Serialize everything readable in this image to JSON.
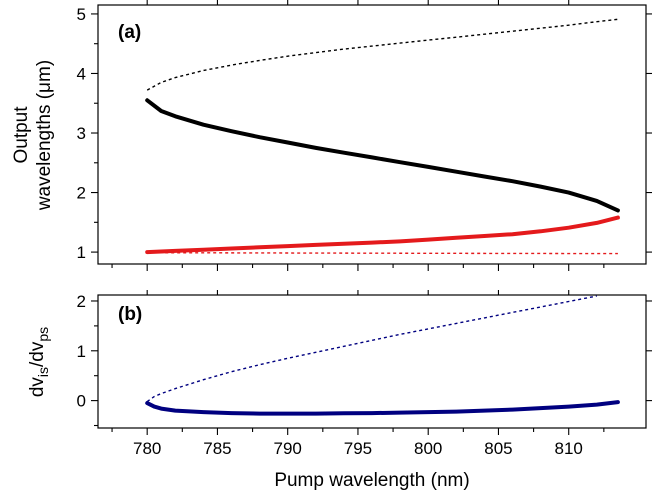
{
  "chart_data": [
    {
      "panel": "(a)",
      "type": "line",
      "xlabel": "Pump wavelength (nm)",
      "ylabel_lines": [
        "Output",
        "wavelengths (μm)"
      ],
      "xlim": [
        776.5,
        815.5
      ],
      "ylim": [
        0.8,
        5.15
      ],
      "xticks": [
        780,
        785,
        790,
        795,
        800,
        805,
        810
      ],
      "yticks": [
        1,
        2,
        3,
        4,
        5
      ],
      "series": [
        {
          "color": "#000000",
          "style": "dashed",
          "x": [
            780,
            781,
            782,
            784,
            786,
            788,
            790,
            792,
            794,
            796,
            798,
            800,
            802,
            804,
            806,
            808,
            810,
            812,
            813.5
          ],
          "y": [
            3.72,
            3.85,
            3.93,
            4.05,
            4.14,
            4.22,
            4.29,
            4.35,
            4.41,
            4.46,
            4.51,
            4.56,
            4.61,
            4.66,
            4.71,
            4.76,
            4.81,
            4.87,
            4.91
          ]
        },
        {
          "color": "#000000",
          "style": "solid",
          "x": [
            780,
            781,
            782,
            784,
            786,
            788,
            790,
            792,
            794,
            796,
            798,
            800,
            802,
            804,
            806,
            808,
            810,
            812,
            813.5
          ],
          "y": [
            3.55,
            3.37,
            3.28,
            3.14,
            3.03,
            2.93,
            2.84,
            2.75,
            2.67,
            2.59,
            2.51,
            2.43,
            2.35,
            2.27,
            2.19,
            2.1,
            2.0,
            1.86,
            1.7
          ]
        },
        {
          "color": "#e41a1c",
          "style": "solid",
          "x": [
            780,
            782,
            784,
            786,
            788,
            790,
            792,
            794,
            796,
            798,
            800,
            802,
            804,
            806,
            808,
            810,
            812,
            813.5
          ],
          "y": [
            1.0,
            1.02,
            1.04,
            1.06,
            1.08,
            1.1,
            1.12,
            1.14,
            1.16,
            1.18,
            1.21,
            1.24,
            1.27,
            1.3,
            1.35,
            1.41,
            1.49,
            1.58
          ]
        },
        {
          "color": "#e41a1c",
          "style": "dashed",
          "x": [
            780,
            790,
            800,
            813.5
          ],
          "y": [
            0.99,
            0.985,
            0.98,
            0.975
          ]
        }
      ]
    },
    {
      "panel": "(b)",
      "type": "line",
      "xlabel": "Pump wavelength (nm)",
      "ylabel_main": "dv",
      "ylabel_sub1": "is",
      "ylabel_mid": "/dv",
      "ylabel_sub2": "ps",
      "xlim": [
        776.5,
        815.5
      ],
      "ylim": [
        -0.55,
        2.12
      ],
      "xticks": [
        780,
        785,
        790,
        795,
        800,
        805,
        810
      ],
      "yticks": [
        0,
        1,
        2
      ],
      "series": [
        {
          "color": "#000080",
          "style": "dashed",
          "x": [
            780,
            780.5,
            781,
            782,
            784,
            786,
            788,
            790,
            792,
            794,
            796,
            798,
            800,
            802,
            804,
            806,
            808,
            810,
            812
          ],
          "y": [
            -0.02,
            0.08,
            0.14,
            0.24,
            0.42,
            0.58,
            0.72,
            0.85,
            0.97,
            1.09,
            1.21,
            1.33,
            1.44,
            1.55,
            1.66,
            1.77,
            1.88,
            1.99,
            2.1
          ]
        },
        {
          "color": "#000080",
          "style": "solid",
          "x": [
            780,
            780.5,
            781,
            782,
            784,
            786,
            788,
            790,
            792,
            794,
            796,
            798,
            800,
            802,
            804,
            806,
            808,
            810,
            812,
            813.5
          ],
          "y": [
            -0.05,
            -0.12,
            -0.16,
            -0.2,
            -0.23,
            -0.25,
            -0.26,
            -0.26,
            -0.26,
            -0.255,
            -0.25,
            -0.24,
            -0.23,
            -0.22,
            -0.2,
            -0.18,
            -0.15,
            -0.12,
            -0.08,
            -0.03
          ]
        }
      ]
    }
  ]
}
